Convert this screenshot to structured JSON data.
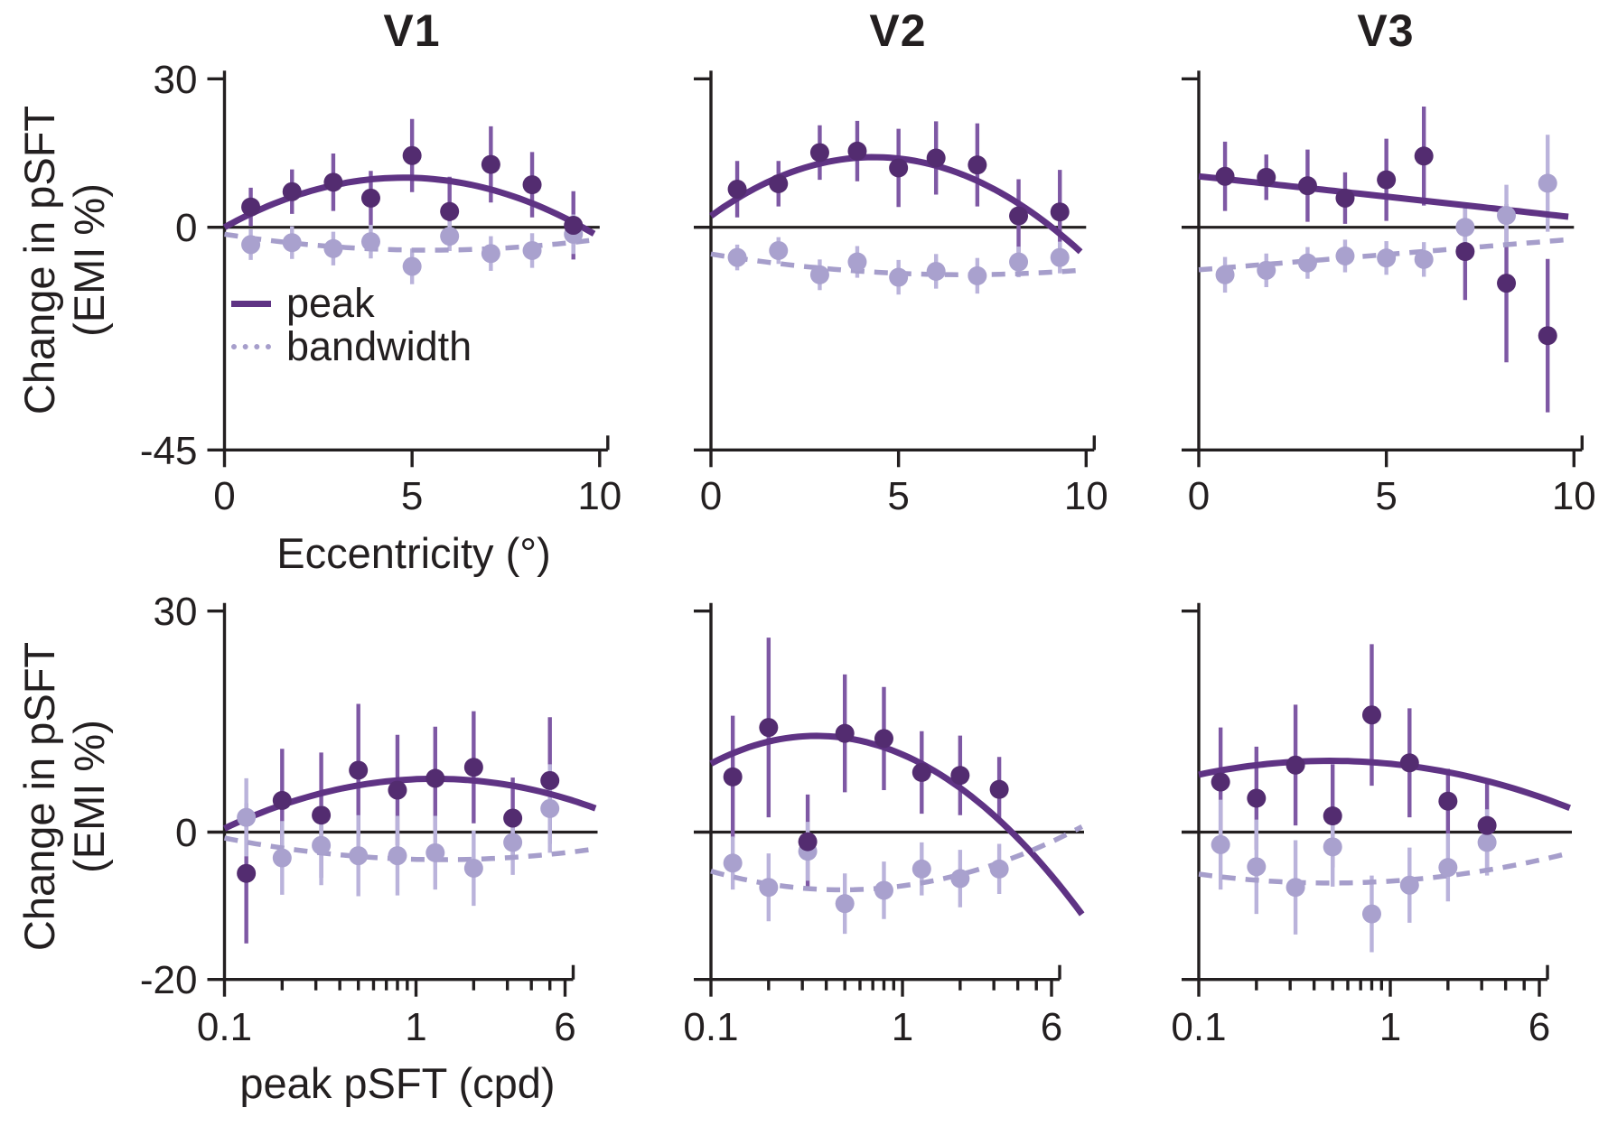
{
  "figure": {
    "panel_titles": [
      "V1",
      "V2",
      "V3"
    ],
    "y_axis_label_line1": "Change in pSFT",
    "y_axis_label_line2": "(EMI %)",
    "x_axis_label_top": "Eccentricity (°)",
    "x_axis_label_bottom": "peak pSFT (cpd)",
    "legend": {
      "peak_label": "peak",
      "bandwidth_label": "bandwidth"
    }
  },
  "colors": {
    "peak_dot": "#532c70",
    "peak_err": "#7e58a4",
    "peak_line": "#5f3384",
    "bandwidth_dot": "#a9a1ce",
    "bandwidth_err": "#bab3db",
    "bandwidth_line": "#a69ecb",
    "axis": "#231f20",
    "background": "#ffffff"
  },
  "chart_data": [
    {
      "id": "v1-eccentricity",
      "title": "V1",
      "type": "scatter",
      "row": 0,
      "col": 0,
      "x_scale": "linear",
      "xlim": [
        0,
        10
      ],
      "x_ticks": [
        0,
        5,
        10
      ],
      "x_tick_labels": [
        "0",
        "5",
        "10"
      ],
      "ylim": [
        -45,
        30
      ],
      "y_ticks": [
        30,
        0,
        -45
      ],
      "y_tick_labels": [
        "30",
        "0",
        "-45"
      ],
      "series": [
        {
          "name": "peak",
          "x": [
            0.7,
            1.8,
            2.9,
            3.9,
            5.0,
            6.0,
            7.1,
            8.2,
            9.3
          ],
          "y": [
            4.1,
            7.2,
            9.1,
            5.9,
            14.5,
            3.2,
            12.7,
            8.6,
            0.4
          ],
          "err": [
            3.9,
            4.5,
            5.8,
            5.5,
            7.4,
            7.0,
            7.7,
            6.6,
            6.9
          ]
        },
        {
          "name": "bandwidth",
          "x": [
            0.7,
            1.8,
            2.9,
            3.9,
            5.0,
            6.0,
            7.1,
            8.2,
            9.3
          ],
          "y": [
            -3.5,
            -3.1,
            -4.3,
            -2.9,
            -7.9,
            -1.8,
            -5.3,
            -4.7,
            -1.4
          ],
          "err": [
            3.1,
            3.3,
            3.4,
            3.4,
            3.6,
            3.0,
            3.5,
            3.5,
            4.0
          ]
        }
      ],
      "fit_curves": [
        {
          "series": "peak",
          "style": "solid",
          "anchors": [
            [
              0,
              0.0
            ],
            [
              5,
              10.0
            ],
            [
              10,
              -2.0
            ]
          ]
        },
        {
          "series": "bandwidth",
          "style": "dashed",
          "anchors": [
            [
              0,
              -1.4
            ],
            [
              5,
              -4.6
            ],
            [
              10,
              -2.4
            ]
          ]
        }
      ]
    },
    {
      "id": "v2-eccentricity",
      "title": "V2",
      "type": "scatter",
      "row": 0,
      "col": 1,
      "x_scale": "linear",
      "xlim": [
        0,
        10
      ],
      "x_ticks": [
        0,
        5,
        10
      ],
      "x_tick_labels": [
        "0",
        "5",
        "10"
      ],
      "ylim": [
        -45,
        30
      ],
      "y_ticks": [
        30,
        0,
        -45
      ],
      "y_tick_labels": [
        "30",
        "0",
        "-45"
      ],
      "series": [
        {
          "name": "peak",
          "x": [
            0.7,
            1.8,
            2.9,
            3.9,
            5.0,
            6.0,
            7.1,
            8.2,
            9.3
          ],
          "y": [
            7.7,
            8.8,
            15.1,
            15.4,
            12.0,
            14.0,
            12.6,
            2.3,
            3.1
          ],
          "err": [
            5.7,
            4.6,
            5.5,
            6.1,
            7.9,
            7.4,
            8.4,
            7.4,
            8.5
          ]
        },
        {
          "name": "bandwidth",
          "x": [
            0.7,
            1.8,
            2.9,
            3.9,
            5.0,
            6.0,
            7.1,
            8.2,
            9.3
          ],
          "y": [
            -6.1,
            -4.7,
            -9.6,
            -7.0,
            -10.1,
            -8.9,
            -9.8,
            -7.0,
            -6.1
          ],
          "err": [
            2.6,
            2.7,
            3.1,
            3.2,
            3.5,
            3.5,
            3.6,
            3.1,
            3.2
          ]
        }
      ],
      "fit_curves": [
        {
          "series": "peak",
          "style": "solid",
          "anchors": [
            [
              0,
              2.3
            ],
            [
              5,
              13.9
            ],
            [
              10,
              -6.0
            ]
          ]
        },
        {
          "series": "bandwidth",
          "style": "dashed",
          "anchors": [
            [
              0,
              -5.4
            ],
            [
              5,
              -9.3
            ],
            [
              10,
              -8.6
            ]
          ]
        }
      ]
    },
    {
      "id": "v3-eccentricity",
      "title": "V3",
      "type": "scatter",
      "row": 0,
      "col": 2,
      "x_scale": "linear",
      "xlim": [
        0,
        10
      ],
      "x_ticks": [
        0,
        5,
        10
      ],
      "x_tick_labels": [
        "0",
        "5",
        "10"
      ],
      "ylim": [
        -45,
        30
      ],
      "y_ticks": [
        30,
        0,
        -45
      ],
      "y_tick_labels": [
        "30",
        "0",
        "-45"
      ],
      "series": [
        {
          "name": "peak",
          "x": [
            0.7,
            1.8,
            2.9,
            3.9,
            5.0,
            6.0,
            7.1,
            8.2,
            9.3
          ],
          "y": [
            10.3,
            10.1,
            8.4,
            5.9,
            9.6,
            14.4,
            -4.9,
            -11.3,
            -21.9
          ],
          "err": [
            7.0,
            4.6,
            7.3,
            5.2,
            8.3,
            10.0,
            9.8,
            16.0,
            15.5
          ]
        },
        {
          "name": "bandwidth",
          "x": [
            0.7,
            1.8,
            2.9,
            3.9,
            5.0,
            6.0,
            7.1,
            8.2,
            9.3
          ],
          "y": [
            -9.6,
            -8.7,
            -7.2,
            -5.8,
            -6.2,
            -6.5,
            0.0,
            2.4,
            8.9
          ],
          "err": [
            3.6,
            3.4,
            3.2,
            3.3,
            3.4,
            3.5,
            4.2,
            6.2,
            9.8
          ]
        }
      ],
      "fit_curves": [
        {
          "series": "peak",
          "style": "solid",
          "anchors": [
            [
              0,
              10.3
            ],
            [
              5,
              6.2
            ],
            [
              10,
              2.0
            ]
          ]
        },
        {
          "series": "bandwidth",
          "style": "dashed",
          "anchors": [
            [
              0,
              -8.6
            ],
            [
              5,
              -5.5
            ],
            [
              10,
              -2.4
            ]
          ]
        }
      ]
    },
    {
      "id": "v1-peak-psft",
      "type": "scatter",
      "row": 1,
      "col": 0,
      "x_scale": "log",
      "xlim": [
        0.1,
        6
      ],
      "x_ticks": [
        0.1,
        1,
        6
      ],
      "x_tick_labels": [
        "0.1",
        "1",
        "6"
      ],
      "x_minor_ticks": [
        0.2,
        0.3,
        0.4,
        0.5,
        0.6,
        0.7,
        0.8,
        0.9,
        2,
        3,
        4,
        5
      ],
      "ylim": [
        -20,
        30
      ],
      "y_ticks": [
        30,
        0,
        -20
      ],
      "y_tick_labels": [
        "30",
        "0",
        "-20"
      ],
      "series": [
        {
          "name": "peak",
          "x": [
            0.13,
            0.2,
            0.32,
            0.5,
            0.8,
            1.26,
            2.0,
            3.2,
            5.0
          ],
          "y": [
            -5.6,
            4.3,
            2.3,
            8.4,
            5.7,
            7.3,
            8.8,
            1.9,
            7.0
          ],
          "err": [
            9.5,
            7.0,
            8.5,
            9.0,
            7.5,
            7.0,
            7.6,
            5.5,
            8.6
          ]
        },
        {
          "name": "bandwidth",
          "x": [
            0.13,
            0.2,
            0.32,
            0.5,
            0.8,
            1.26,
            2.0,
            3.2,
            5.0
          ],
          "y": [
            2.0,
            -3.5,
            -1.8,
            -3.2,
            -3.2,
            -2.8,
            -4.9,
            -1.4,
            3.2
          ],
          "err": [
            5.3,
            5.0,
            5.4,
            5.5,
            5.4,
            5.0,
            5.1,
            4.4,
            6.0
          ]
        }
      ],
      "fit_curves": [
        {
          "series": "peak",
          "style": "solid",
          "anchors": [
            [
              0.1,
              0.5
            ],
            [
              0.78,
              7.0
            ],
            [
              6,
              4.6
            ]
          ]
        },
        {
          "series": "bandwidth",
          "style": "dashed",
          "anchors": [
            [
              0.1,
              -0.8
            ],
            [
              0.78,
              -3.6
            ],
            [
              6,
              -2.8
            ]
          ]
        }
      ]
    },
    {
      "id": "v2-peak-psft",
      "type": "scatter",
      "row": 1,
      "col": 1,
      "x_scale": "log",
      "xlim": [
        0.1,
        6
      ],
      "x_ticks": [
        0.1,
        1,
        6
      ],
      "x_tick_labels": [
        "0.1",
        "1",
        "6"
      ],
      "x_minor_ticks": [
        0.2,
        0.3,
        0.4,
        0.5,
        0.6,
        0.7,
        0.8,
        0.9,
        2,
        3,
        4,
        5
      ],
      "ylim": [
        -20,
        30
      ],
      "y_ticks": [
        30,
        0,
        -20
      ],
      "y_tick_labels": [
        "30",
        "0",
        "-20"
      ],
      "series": [
        {
          "name": "peak",
          "x": [
            0.13,
            0.2,
            0.32,
            0.5,
            0.8,
            1.26,
            2.0,
            3.2
          ],
          "y": [
            7.5,
            14.2,
            -1.3,
            13.4,
            12.7,
            8.1,
            7.7,
            5.8
          ],
          "err": [
            8.3,
            12.2,
            6.4,
            8.0,
            7.0,
            5.6,
            5.4,
            4.4
          ]
        },
        {
          "name": "bandwidth",
          "x": [
            0.13,
            0.2,
            0.32,
            0.5,
            0.8,
            1.26,
            2.0,
            3.2
          ],
          "y": [
            -4.2,
            -7.5,
            -2.6,
            -9.7,
            -7.9,
            -5.0,
            -6.3,
            -5.0
          ],
          "err": [
            3.6,
            4.6,
            4.0,
            4.1,
            3.9,
            3.6,
            3.9,
            3.4
          ]
        }
      ],
      "fit_curves": [
        {
          "series": "peak",
          "style": "solid",
          "anchors": [
            [
              0.1,
              9.3
            ],
            [
              0.78,
              11.6
            ],
            [
              6,
              -5.9
            ]
          ]
        },
        {
          "series": "bandwidth",
          "style": "dashed",
          "anchors": [
            [
              0.1,
              -5.3
            ],
            [
              0.78,
              -7.6
            ],
            [
              6,
              -1.3
            ]
          ]
        }
      ]
    },
    {
      "id": "v3-peak-psft",
      "type": "scatter",
      "row": 1,
      "col": 2,
      "x_scale": "log",
      "xlim": [
        0.1,
        6
      ],
      "x_ticks": [
        0.1,
        1,
        6
      ],
      "x_tick_labels": [
        "0.1",
        "1",
        "6"
      ],
      "x_minor_ticks": [
        0.2,
        0.3,
        0.4,
        0.5,
        0.6,
        0.7,
        0.8,
        0.9,
        2,
        3,
        4,
        5
      ],
      "ylim": [
        -20,
        30
      ],
      "y_ticks": [
        30,
        0,
        -20
      ],
      "y_tick_labels": [
        "30",
        "0",
        "-20"
      ],
      "series": [
        {
          "name": "peak",
          "x": [
            0.13,
            0.2,
            0.32,
            0.5,
            0.8,
            1.26,
            2.0,
            3.2
          ],
          "y": [
            6.8,
            4.6,
            9.1,
            2.2,
            15.9,
            9.4,
            4.2,
            0.9
          ],
          "err": [
            7.4,
            7.0,
            8.2,
            7.0,
            9.6,
            7.4,
            4.4,
            5.8
          ]
        },
        {
          "name": "bandwidth",
          "x": [
            0.13,
            0.2,
            0.32,
            0.5,
            0.8,
            1.26,
            2.0,
            3.2
          ],
          "y": [
            -1.7,
            -4.7,
            -7.5,
            -2.0,
            -11.1,
            -7.2,
            -4.8,
            -1.4
          ],
          "err": [
            6.1,
            6.4,
            6.4,
            5.4,
            5.2,
            5.1,
            4.6,
            4.5
          ]
        }
      ],
      "fit_curves": [
        {
          "series": "peak",
          "style": "solid",
          "anchors": [
            [
              0.1,
              7.8
            ],
            [
              0.78,
              9.5
            ],
            [
              6,
              4.8
            ]
          ]
        },
        {
          "series": "bandwidth",
          "style": "dashed",
          "anchors": [
            [
              0.1,
              -5.7
            ],
            [
              0.78,
              -6.8
            ],
            [
              6,
              -3.8
            ]
          ]
        }
      ]
    }
  ]
}
